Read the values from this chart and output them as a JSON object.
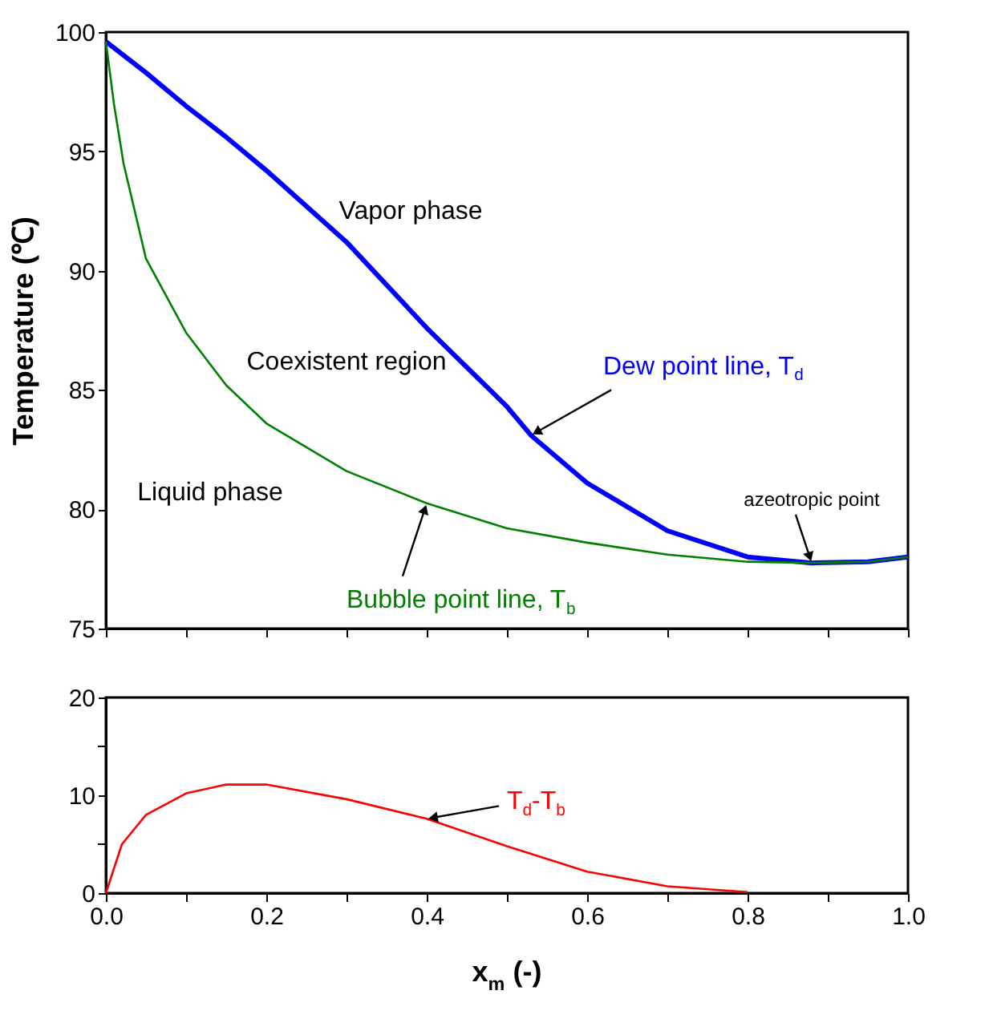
{
  "chart_data": [
    {
      "type": "line",
      "ylabel": "Temperature (℃)",
      "xlim": [
        0,
        1.0
      ],
      "xticks": [
        {
          "value": 0,
          "label": null
        },
        {
          "value": 0.1,
          "label": null
        },
        {
          "value": 0.2,
          "label": null
        },
        {
          "value": 0.3,
          "label": null
        },
        {
          "value": 0.4,
          "label": null
        },
        {
          "value": 0.5,
          "label": null
        },
        {
          "value": 0.6,
          "label": null
        },
        {
          "value": 0.7,
          "label": null
        },
        {
          "value": 0.8,
          "label": null
        },
        {
          "value": 0.9,
          "label": null
        },
        {
          "value": 1.0,
          "label": null
        }
      ],
      "ylim": [
        75,
        100
      ],
      "yticks": [
        75,
        80,
        85,
        90,
        95,
        100
      ],
      "tick_labels": "y",
      "grid": false,
      "series": [
        {
          "name": "Dew point line, T$_{d}$",
          "color": "#0000ff",
          "x": [
            0,
            0.05,
            0.1,
            0.15,
            0.2,
            0.3,
            0.4,
            0.5,
            0.53,
            0.6,
            0.7,
            0.8,
            0.88,
            0.95,
            1.0
          ],
          "values": [
            99.6,
            98.3,
            96.9,
            95.6,
            94.2,
            91.2,
            87.6,
            84.3,
            83.1,
            81.1,
            79.1,
            78.0,
            77.75,
            77.8,
            78.0
          ]
        },
        {
          "name": "Bubble point line, T$_{b}$",
          "color": "#008000",
          "x": [
            0,
            0.01,
            0.022,
            0.05,
            0.1,
            0.15,
            0.2,
            0.3,
            0.4,
            0.5,
            0.6,
            0.7,
            0.8,
            0.88,
            0.95,
            1.0
          ],
          "values": [
            99.6,
            97.0,
            94.5,
            90.5,
            87.4,
            85.2,
            83.6,
            81.6,
            80.25,
            79.2,
            78.6,
            78.1,
            77.8,
            77.75,
            77.8,
            78.0
          ]
        }
      ],
      "annotations": [
        "Vapor phase",
        "Coexistent region",
        "Liquid phase",
        {
          "text": "azeotropic point",
          "x": 0.88,
          "y": 77.75
        }
      ]
    },
    {
      "type": "line",
      "xlabel": "x$_{m}$ (-)",
      "xlim": [
        0,
        1.0
      ],
      "xticks": [
        {
          "value": 0,
          "label": "0.0"
        },
        {
          "value": 0.1,
          "label": null
        },
        {
          "value": 0.2,
          "label": "0.2"
        },
        {
          "value": 0.3,
          "label": null
        },
        {
          "value": 0.4,
          "label": "0.4"
        },
        {
          "value": 0.5,
          "label": null
        },
        {
          "value": 0.6,
          "label": "0.6"
        },
        {
          "value": 0.7,
          "label": null
        },
        {
          "value": 0.8,
          "label": "0.8"
        },
        {
          "value": 0.9,
          "label": null
        },
        {
          "value": 1.0,
          "label": "1.0"
        }
      ],
      "ylim": [
        0,
        20
      ],
      "yticks": [
        0,
        {
          "value": 5,
          "label": null
        },
        10,
        {
          "value": 15,
          "label": null
        },
        20
      ],
      "grid": false,
      "series": [
        {
          "name": "T$_{d}$-T$_{b}$",
          "color": "#ff0000",
          "x": [
            0,
            0.02,
            0.05,
            0.1,
            0.15,
            0.2,
            0.3,
            0.4,
            0.5,
            0.6,
            0.7,
            0.8
          ],
          "values": [
            0,
            5,
            8,
            10.2,
            11.1,
            11.1,
            9.6,
            7.6,
            4.8,
            2.2,
            0.7,
            0.1
          ]
        }
      ]
    }
  ]
}
